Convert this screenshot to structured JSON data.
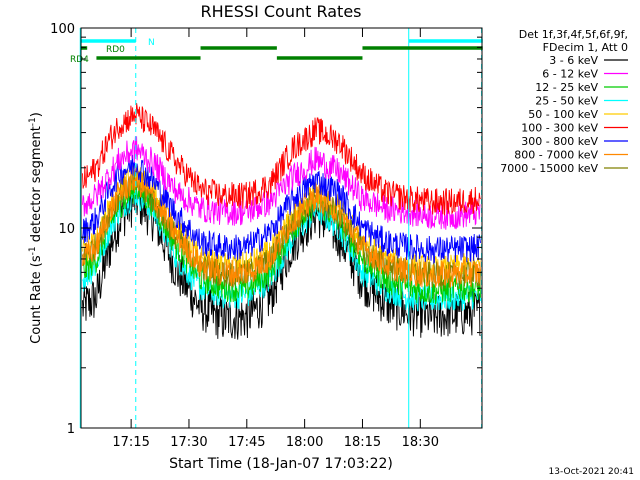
{
  "chart_data": {
    "type": "line",
    "title": "RHESSI Count Rates",
    "xlabel": "Start Time (18-Jan-07 17:03:22)",
    "ylabel_main": "Count Rate (s",
    "ylabel_exp": "-1",
    "ylabel_rest": " detector segment",
    "ylabel_exp2": "-1",
    "ylabel_close": ")",
    "yscale": "log",
    "ylim": [
      1,
      100
    ],
    "xlim_minutes": [
      17.0333,
      18.7667
    ],
    "x_range_label": [
      "17:03:22",
      "18:46"
    ],
    "xticks": [
      {
        "label": "17:15",
        "value": 17.25
      },
      {
        "label": "17:30",
        "value": 17.5
      },
      {
        "label": "17:45",
        "value": 17.75
      },
      {
        "label": "18:00",
        "value": 18.0
      },
      {
        "label": "18:15",
        "value": 18.25
      },
      {
        "label": "18:30",
        "value": 18.5
      }
    ],
    "yticks": [
      {
        "label": "1",
        "value": 1
      },
      {
        "label": "10",
        "value": 10
      },
      {
        "label": "100",
        "value": 100
      }
    ],
    "legend": {
      "header": [
        "Det 1f,3f,4f,5f,6f,9f,",
        "FDecim 1, Att 0"
      ],
      "entries": [
        {
          "label": "3 - 6 keV",
          "color": "#000000"
        },
        {
          "label": "6 - 12 keV",
          "color": "#ff00ff"
        },
        {
          "label": "12 - 25 keV",
          "color": "#00cc00"
        },
        {
          "label": "25 - 50 keV",
          "color": "#00ffff"
        },
        {
          "label": "50 - 100 keV",
          "color": "#ffcc00"
        },
        {
          "label": "100 - 300 keV",
          "color": "#ff0000"
        },
        {
          "label": "300 - 800 keV",
          "color": "#0000ff"
        },
        {
          "label": "800 - 7000 keV",
          "color": "#ff8800"
        },
        {
          "label": "7000 - 15000 keV",
          "color": "#808000"
        }
      ]
    },
    "flags": [
      {
        "label": "N",
        "color": "#00ffff",
        "segments": [
          [
            17.0333,
            17.27
          ],
          [
            18.45,
            18.77
          ]
        ]
      },
      {
        "label": "RD0",
        "color": "#008000",
        "segments": [
          [
            17.0333,
            17.06
          ],
          [
            17.55,
            17.88
          ],
          [
            18.25,
            18.77
          ]
        ]
      },
      {
        "label": "RD4",
        "color": "#008000",
        "segments": [
          [
            17.1,
            17.55
          ],
          [
            17.88,
            18.25
          ]
        ]
      }
    ],
    "vlines_solid": [
      17.03,
      18.45
    ],
    "vlines_dashed": [
      17.27,
      18.765
    ],
    "series": [
      {
        "name": "3 - 6 keV",
        "color": "#000000",
        "x": [
          17.04,
          17.1,
          17.15,
          17.2,
          17.27,
          17.35,
          17.45,
          17.55,
          17.65,
          17.75,
          17.85,
          17.95,
          18.05,
          18.15,
          18.25,
          18.35,
          18.45,
          18.55,
          18.65,
          18.76
        ],
        "y": [
          4.0,
          4.5,
          7.5,
          11.0,
          14.0,
          11.0,
          6.0,
          4.0,
          3.5,
          3.6,
          4.5,
          8.5,
          12.0,
          9.0,
          5.5,
          4.2,
          3.8,
          3.6,
          3.7,
          3.8
        ]
      },
      {
        "name": "6 - 12 keV",
        "color": "#ff00ff",
        "x": [
          17.04,
          17.1,
          17.15,
          17.2,
          17.27,
          17.35,
          17.45,
          17.55,
          17.65,
          17.75,
          17.85,
          17.95,
          18.05,
          18.15,
          18.25,
          18.35,
          18.45,
          18.55,
          18.65,
          18.76
        ],
        "y": [
          13.0,
          14.5,
          18.0,
          22.0,
          25.0,
          21.0,
          15.0,
          12.5,
          12.0,
          12.0,
          13.5,
          18.0,
          22.0,
          19.0,
          14.0,
          12.5,
          12.0,
          11.5,
          11.5,
          12.0
        ]
      },
      {
        "name": "12 - 25 keV",
        "color": "#00cc00",
        "x": [
          17.04,
          17.1,
          17.15,
          17.2,
          17.27,
          17.35,
          17.45,
          17.55,
          17.65,
          17.75,
          17.85,
          17.95,
          18.05,
          18.15,
          18.25,
          18.35,
          18.45,
          18.55,
          18.65,
          18.76
        ],
        "y": [
          6.0,
          7.0,
          10.0,
          13.0,
          16.0,
          13.0,
          8.0,
          5.6,
          5.0,
          5.0,
          6.0,
          10.0,
          13.5,
          11.0,
          7.0,
          5.5,
          5.0,
          4.8,
          5.0,
          5.0
        ]
      },
      {
        "name": "25 - 50 keV",
        "color": "#00ffff",
        "x": [
          17.04,
          17.1,
          17.15,
          17.2,
          17.27,
          17.35,
          17.45,
          17.55,
          17.65,
          17.75,
          17.85,
          17.95,
          18.05,
          18.15,
          18.25,
          18.35,
          18.45,
          18.55,
          18.65,
          18.76
        ],
        "y": [
          5.5,
          6.5,
          9.5,
          12.5,
          15.0,
          12.0,
          7.0,
          5.0,
          4.6,
          4.6,
          5.5,
          9.0,
          12.5,
          10.0,
          6.0,
          5.0,
          4.5,
          4.4,
          4.5,
          4.6
        ]
      },
      {
        "name": "50 - 100 keV",
        "color": "#ffcc00",
        "x": [
          17.04,
          17.1,
          17.15,
          17.2,
          17.27,
          17.35,
          17.45,
          17.55,
          17.65,
          17.75,
          17.85,
          17.95,
          18.05,
          18.15,
          18.25,
          18.35,
          18.45,
          18.55,
          18.65,
          18.76
        ],
        "y": [
          7.5,
          8.5,
          12.0,
          15.5,
          18.5,
          15.0,
          9.5,
          7.0,
          6.5,
          6.5,
          7.5,
          11.5,
          15.0,
          12.5,
          8.5,
          7.0,
          6.5,
          6.2,
          6.3,
          6.5
        ]
      },
      {
        "name": "100 - 300 keV",
        "color": "#ff0000",
        "x": [
          17.04,
          17.1,
          17.15,
          17.2,
          17.27,
          17.35,
          17.45,
          17.55,
          17.65,
          17.75,
          17.85,
          17.95,
          18.05,
          18.15,
          18.25,
          18.35,
          18.45,
          18.55,
          18.65,
          18.76
        ],
        "y": [
          17.0,
          20.0,
          27.0,
          33.0,
          37.0,
          31.0,
          21.0,
          15.5,
          14.5,
          14.5,
          16.5,
          25.0,
          31.0,
          27.0,
          18.5,
          15.0,
          14.0,
          13.5,
          13.5,
          14.0
        ]
      },
      {
        "name": "300 - 800 keV",
        "color": "#0000ff",
        "x": [
          17.04,
          17.1,
          17.15,
          17.2,
          17.27,
          17.35,
          17.45,
          17.55,
          17.65,
          17.75,
          17.85,
          17.95,
          18.05,
          18.15,
          18.25,
          18.35,
          18.45,
          18.55,
          18.65,
          18.76
        ],
        "y": [
          9.5,
          11.0,
          15.0,
          19.0,
          21.0,
          17.0,
          11.5,
          8.5,
          8.0,
          8.0,
          9.5,
          14.0,
          17.5,
          15.0,
          10.0,
          8.5,
          8.0,
          7.8,
          7.8,
          8.0
        ]
      },
      {
        "name": "800 - 7000 keV",
        "color": "#ff8800",
        "x": [
          17.04,
          17.1,
          17.15,
          17.2,
          17.27,
          17.35,
          17.45,
          17.55,
          17.65,
          17.75,
          17.85,
          17.95,
          18.05,
          18.15,
          18.25,
          18.35,
          18.45,
          18.55,
          18.65,
          18.76
        ],
        "y": [
          7.0,
          8.0,
          11.5,
          15.0,
          17.5,
          14.0,
          9.0,
          6.5,
          6.0,
          6.0,
          7.0,
          11.0,
          14.5,
          12.0,
          8.0,
          6.6,
          6.0,
          5.8,
          5.9,
          6.0
        ]
      },
      {
        "name": "7000 - 15000 keV",
        "color": "#808000",
        "x": [
          17.04,
          17.1,
          17.15,
          17.2,
          17.27,
          17.35,
          17.45,
          17.55,
          17.65,
          17.75,
          17.85,
          17.95,
          18.05,
          18.15,
          18.25,
          18.35,
          18.45,
          18.55,
          18.65,
          18.76
        ],
        "y": [
          7.2,
          8.2,
          11.5,
          14.8,
          17.0,
          13.5,
          8.8,
          6.4,
          5.9,
          5.9,
          6.9,
          10.8,
          14.0,
          11.8,
          7.8,
          6.5,
          6.0,
          5.8,
          5.8,
          5.9
        ]
      }
    ]
  },
  "footer_date": "13-Oct-2021 20:41"
}
